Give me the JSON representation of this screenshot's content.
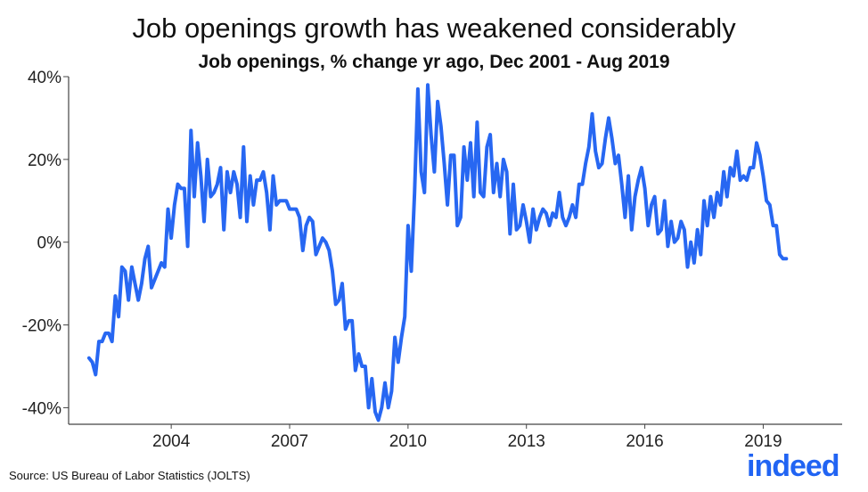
{
  "title": "Job openings growth has weakened considerably",
  "subtitle": "Job openings, % change yr ago, Dec 2001 - Aug 2019",
  "source": "Source: US Bureau of Labor Statistics (JOLTS)",
  "logo": "indeed",
  "colors": {
    "line": "#2767f2",
    "axis": "#444444",
    "logo": "#2164f3"
  },
  "chart_data": {
    "type": "line",
    "title": "Job openings growth has weakened considerably",
    "subtitle": "Job openings, % change yr ago, Dec 2001 - Aug 2019",
    "xlabel": "",
    "ylabel": "",
    "xlim": [
      2001.4,
      2021.0
    ],
    "ylim": [
      -44,
      40
    ],
    "x_ticks": [
      2004,
      2007,
      2010,
      2013,
      2016,
      2019
    ],
    "x_tick_labels": [
      "2004",
      "2007",
      "2010",
      "2013",
      "2016",
      "2019"
    ],
    "y_ticks": [
      -40,
      -20,
      0,
      20,
      40
    ],
    "y_tick_labels": [
      "-40%",
      "-20%",
      "0%",
      "20%",
      "40%"
    ],
    "grid": false,
    "series": [
      {
        "start": "2001-12",
        "frequency": "monthly",
        "values": [
          -28,
          -29,
          -32,
          -24,
          -24,
          -22,
          -22,
          -24,
          -13,
          -18,
          -6,
          -7,
          -14,
          -6,
          -10,
          -14,
          -10,
          -4,
          -1,
          -11,
          -9,
          -7,
          -5,
          -6,
          8,
          1,
          9,
          14,
          13,
          13,
          -1,
          27,
          11,
          24,
          16,
          5,
          20,
          11,
          12,
          14,
          18,
          3,
          17,
          12,
          17,
          14,
          6,
          23,
          5,
          16,
          9,
          15,
          15,
          17,
          12,
          3,
          16,
          9,
          10,
          10,
          10,
          8,
          8,
          8,
          6,
          -2,
          4,
          6,
          5,
          -3,
          -1,
          1,
          0,
          -2,
          -7,
          -15,
          -14,
          -10,
          -21,
          -19,
          -19,
          -31,
          -27,
          -30,
          -30,
          -40,
          -33,
          -41,
          -43,
          -40,
          -34,
          -40,
          -36,
          -23,
          -29,
          -23,
          -18,
          4,
          -7,
          12,
          37,
          17,
          12,
          38,
          26,
          17,
          34,
          28,
          19,
          9,
          21,
          21,
          4,
          6,
          23,
          15,
          24,
          11,
          29,
          12,
          11,
          23,
          26,
          12,
          19,
          11,
          20,
          17,
          2,
          14,
          3,
          4,
          9,
          5,
          0,
          8,
          3,
          6,
          8,
          7,
          4,
          7,
          6,
          12,
          6,
          4,
          6,
          9,
          6,
          14,
          14,
          19,
          23,
          31,
          22,
          18,
          19,
          25,
          30,
          25,
          19,
          21,
          14,
          6,
          16,
          3,
          11,
          15,
          18,
          13,
          4,
          9,
          11,
          2,
          3,
          10,
          -1,
          5,
          0,
          1,
          5,
          3,
          -6,
          0,
          -5,
          3,
          -3,
          10,
          4,
          11,
          6,
          12,
          9,
          17,
          11,
          18,
          16,
          22,
          15,
          16,
          15,
          18,
          18,
          24,
          21,
          16,
          10,
          9,
          4,
          4,
          -3,
          -4,
          -4
        ]
      }
    ]
  }
}
